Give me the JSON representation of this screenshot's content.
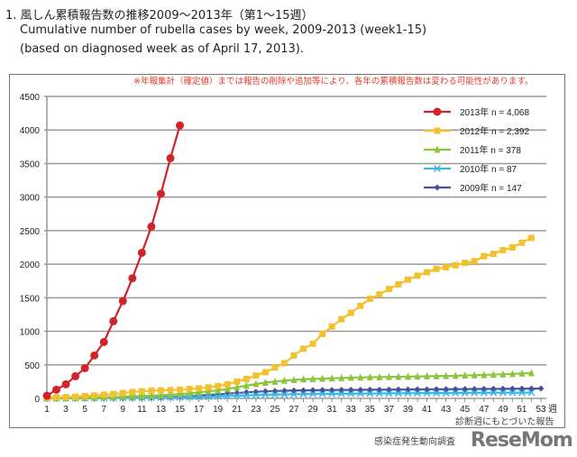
{
  "header": {
    "line1": "1.  風しん累積報告数の推移2009～2013年（第1～15週）",
    "line2": "Cumulative number of rubella cases by week, 2009-2013 (week1-15)",
    "line3": "(based on diagnosed week as of April 17, 2013)."
  },
  "note": "※年報集計（確定値）までは報告の削除や追加等により、各年の累積報告数は変わる可能性があります。",
  "footer": {
    "line1": "診断週にもとづいた報告",
    "line2": "感染症発生動向調査"
  },
  "watermark": "ReseMom",
  "chart_data": {
    "type": "line",
    "x_unit_label": "週",
    "ylim": [
      0,
      4500
    ],
    "yticks": [
      0,
      500,
      1000,
      1500,
      2000,
      2500,
      3000,
      3500,
      4000,
      4500
    ],
    "xlim": [
      1,
      53
    ],
    "xticks": [
      1,
      3,
      5,
      7,
      9,
      11,
      13,
      15,
      17,
      19,
      21,
      23,
      25,
      27,
      29,
      31,
      33,
      35,
      37,
      39,
      41,
      43,
      45,
      47,
      49,
      51,
      53
    ],
    "grid": "horizontal",
    "legend_position": "top-right",
    "series": [
      {
        "name": "2013年 n = 4,068",
        "color": "#d0242a",
        "marker": "circle",
        "values": [
          40,
          130,
          210,
          330,
          450,
          640,
          840,
          1150,
          1450,
          1790,
          2170,
          2560,
          3050,
          3580,
          4068
        ]
      },
      {
        "name": "2012年 n = 2,392",
        "color": "#f2c12e",
        "marker": "square",
        "values": [
          10,
          15,
          20,
          25,
          35,
          45,
          55,
          65,
          80,
          95,
          105,
          115,
          120,
          125,
          130,
          140,
          150,
          165,
          185,
          210,
          250,
          290,
          340,
          390,
          460,
          525,
          640,
          740,
          815,
          960,
          1070,
          1180,
          1275,
          1380,
          1485,
          1550,
          1630,
          1700,
          1770,
          1830,
          1880,
          1930,
          1955,
          1985,
          2020,
          2045,
          2120,
          2155,
          2210,
          2250,
          2320,
          2392
        ]
      },
      {
        "name": "2011年 n = 378",
        "color": "#8cc43c",
        "marker": "triangle",
        "values": [
          3,
          5,
          8,
          10,
          12,
          15,
          18,
          22,
          26,
          30,
          35,
          40,
          48,
          55,
          65,
          75,
          90,
          105,
          120,
          140,
          165,
          190,
          215,
          235,
          250,
          265,
          275,
          285,
          290,
          295,
          300,
          305,
          310,
          312,
          315,
          318,
          320,
          322,
          325,
          327,
          330,
          332,
          335,
          338,
          342,
          346,
          350,
          355,
          360,
          365,
          372,
          378
        ]
      },
      {
        "name": "2010年 n = 87",
        "color": "#3cb4e6",
        "marker": "x",
        "values": [
          1,
          2,
          3,
          4,
          5,
          6,
          7,
          8,
          9,
          10,
          11,
          12,
          14,
          16,
          18,
          20,
          23,
          26,
          30,
          35,
          40,
          45,
          50,
          55,
          58,
          60,
          62,
          64,
          66,
          68,
          69,
          70,
          71,
          72,
          73,
          74,
          75,
          76,
          77,
          78,
          79,
          80,
          80,
          81,
          82,
          83,
          84,
          84,
          85,
          86,
          86,
          87
        ]
      },
      {
        "name": "2009年 n = 147",
        "color": "#4a4f96",
        "marker": "diamond",
        "values": [
          0,
          1,
          2,
          3,
          4,
          5,
          6,
          7,
          8,
          10,
          12,
          15,
          18,
          22,
          27,
          33,
          40,
          50,
          60,
          70,
          80,
          90,
          98,
          105,
          110,
          115,
          118,
          120,
          122,
          124,
          125,
          126,
          127,
          128,
          129,
          130,
          131,
          132,
          133,
          134,
          135,
          136,
          137,
          138,
          139,
          140,
          141,
          142,
          143,
          144,
          145,
          146,
          147
        ]
      }
    ]
  }
}
